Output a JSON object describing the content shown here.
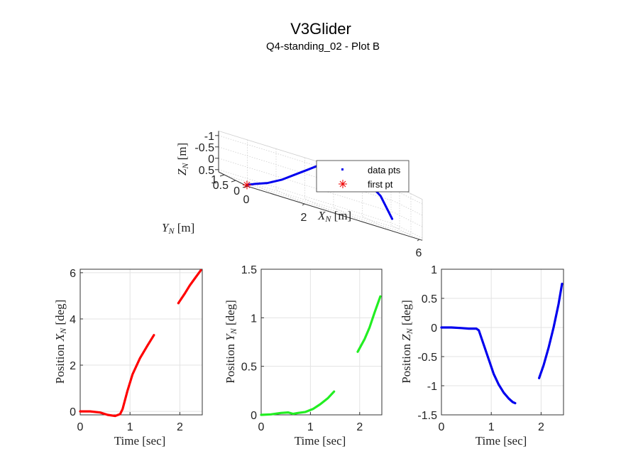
{
  "title": "V3Glider",
  "subtitle": "Q4-standing_02 - Plot B",
  "colors": {
    "red": "#ff0000",
    "green": "#22ee22",
    "blue": "#0000ee",
    "first_pt": "#ee0000"
  },
  "chart_data": [
    {
      "type": "scatter",
      "projection": "3d",
      "xlabel": "X_N [m]",
      "ylabel": "Y_N [m]",
      "zlabel": "Z_N [m]",
      "x_ticks": [
        "0",
        "2",
        "6"
      ],
      "y_ticks": [
        "0",
        "0.5",
        "1"
      ],
      "z_ticks": [
        "-1",
        "-0.5",
        "0",
        "0.5"
      ],
      "z_reversed": true,
      "grid": true,
      "legend": {
        "position": "inside-bottom-right",
        "entries": [
          "data pts",
          "first pt"
        ]
      },
      "series": [
        {
          "name": "data pts",
          "x": [
            0,
            0.3,
            0.8,
            1.4,
            2.0,
            2.6,
            3.3
          ],
          "y": [
            0,
            0.03,
            0.1,
            0.25,
            0.45,
            0.65,
            0.9
          ],
          "z": [
            0.55,
            0.4,
            0.2,
            -0.1,
            -0.45,
            -0.8,
            -1.2
          ]
        },
        {
          "name": "data pts",
          "x": [
            4.6,
            5.4,
            6.0
          ],
          "y": [
            0.65,
            0.95,
            1.2
          ],
          "z": [
            -1.2,
            -0.6,
            0.3
          ]
        },
        {
          "name": "first pt",
          "x": [
            0
          ],
          "y": [
            0
          ],
          "z": [
            0.55
          ]
        }
      ]
    },
    {
      "type": "line",
      "xlabel": "Time [sec]",
      "ylabel": "Position X_N [deg]",
      "xlim": [
        0,
        2.45
      ],
      "ylim": [
        -0.15,
        6.15
      ],
      "x_ticks": [
        "0",
        "1",
        "2"
      ],
      "y_ticks": [
        "0",
        "2",
        "4",
        "6"
      ],
      "grid": true,
      "color": "red",
      "series": [
        {
          "x": [
            0,
            0.2,
            0.4,
            0.55,
            0.7,
            0.8,
            0.85,
            0.95,
            1.05,
            1.2,
            1.35,
            1.48
          ],
          "y": [
            0,
            0,
            -0.05,
            -0.15,
            -0.2,
            -0.12,
            0.1,
            0.9,
            1.6,
            2.3,
            2.85,
            3.3
          ]
        },
        {
          "x": [
            1.97,
            2.1,
            2.2,
            2.3,
            2.42
          ],
          "y": [
            4.68,
            5.1,
            5.45,
            5.75,
            6.1
          ]
        }
      ]
    },
    {
      "type": "line",
      "xlabel": "Time [sec]",
      "ylabel": "Position Y_N [deg]",
      "xlim": [
        0,
        2.45
      ],
      "ylim": [
        0,
        1.5
      ],
      "x_ticks": [
        "0",
        "1",
        "2"
      ],
      "y_ticks": [
        "0",
        "0.5",
        "1",
        "1.5"
      ],
      "grid": true,
      "color": "green",
      "series": [
        {
          "x": [
            0,
            0.2,
            0.4,
            0.55,
            0.65,
            0.75,
            0.9,
            1.05,
            1.2,
            1.35,
            1.48
          ],
          "y": [
            0,
            0.005,
            0.02,
            0.025,
            0.01,
            0.02,
            0.03,
            0.06,
            0.11,
            0.17,
            0.24
          ]
        },
        {
          "x": [
            1.96,
            2.1,
            2.2,
            2.3,
            2.42
          ],
          "y": [
            0.65,
            0.78,
            0.9,
            1.05,
            1.22
          ]
        }
      ]
    },
    {
      "type": "line",
      "xlabel": "Time [sec]",
      "ylabel": "Position Z_N [deg]",
      "xlim": [
        0,
        2.45
      ],
      "ylim": [
        -1.5,
        1
      ],
      "x_ticks": [
        "0",
        "1",
        "2"
      ],
      "y_ticks": [
        "1",
        "0.5",
        "0",
        "-0.5",
        "-1",
        "-1.5"
      ],
      "grid": true,
      "color": "blue",
      "series": [
        {
          "x": [
            0,
            0.2,
            0.4,
            0.55,
            0.7,
            0.75,
            0.85,
            0.95,
            1.05,
            1.15,
            1.25,
            1.35,
            1.43,
            1.48
          ],
          "y": [
            0,
            0,
            -0.01,
            -0.02,
            -0.02,
            -0.05,
            -0.3,
            -0.55,
            -0.8,
            -0.98,
            -1.12,
            -1.22,
            -1.28,
            -1.3
          ]
        },
        {
          "x": [
            1.96,
            2.05,
            2.15,
            2.25,
            2.35,
            2.42
          ],
          "y": [
            -0.87,
            -0.65,
            -0.35,
            0.0,
            0.4,
            0.75
          ]
        }
      ]
    }
  ]
}
